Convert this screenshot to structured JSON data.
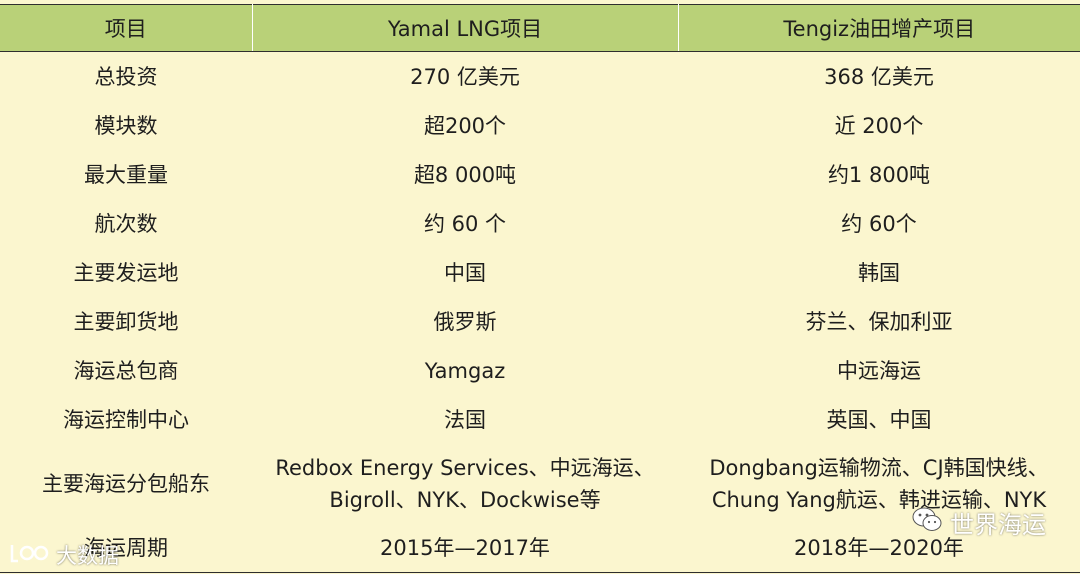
{
  "table": {
    "headers": [
      "项目",
      "Yamal LNG项目",
      "Tengiz油田增产项目"
    ],
    "rows": [
      [
        "总投资",
        "270 亿美元",
        "368 亿美元"
      ],
      [
        "模块数",
        "超200个",
        "近 200个"
      ],
      [
        "最大重量",
        "超8 000吨",
        "约1 800吨"
      ],
      [
        "航次数",
        "约 60 个",
        "约 60个"
      ],
      [
        "主要发运地",
        "中国",
        "韩国"
      ],
      [
        "主要卸货地",
        "俄罗斯",
        "芬兰、保加利亚"
      ],
      [
        "海运总包商",
        "Yamgaz",
        "中远海运"
      ],
      [
        "海运控制中心",
        "法国",
        "英国、中国"
      ],
      [
        "主要海运分包船东",
        [
          "Redbox Energy Services、中远海运、",
          "Bigroll、NYK、Dockwise等"
        ],
        [
          "Dongbang运输物流、CJ韩国快线、",
          "Chung Yang航运、韩进运输、NYK"
        ]
      ],
      [
        "海运周期",
        "2015年—2017年",
        "2018年—2020年"
      ]
    ]
  },
  "watermarks": {
    "right_text": "世界海运",
    "left_text": "大数据",
    "right_icon": "wechat-icon",
    "left_icon": "logo-icon"
  },
  "colors": {
    "header_bg": "#b9d178",
    "body_bg": "#fbf6cf",
    "border": "#2e2e2e"
  }
}
